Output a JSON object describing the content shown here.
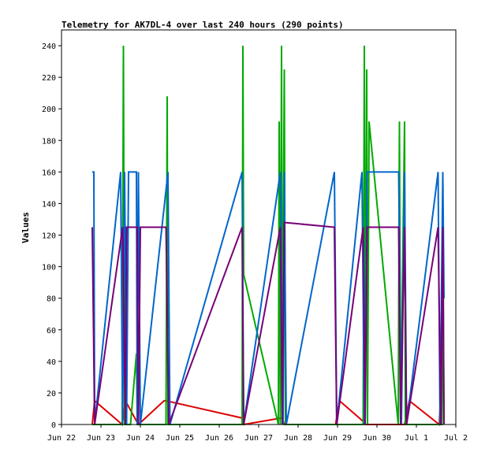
{
  "chart_data": {
    "type": "line",
    "title": "Telemetry for AK7DL-4 over last 240 hours (290 points)",
    "xlabel": "",
    "ylabel": "Values",
    "xlim": [
      0,
      10
    ],
    "ylim": [
      0,
      250
    ],
    "x_tick_labels": [
      "Jun 22",
      "Jun 23",
      "Jun 24",
      "Jun 25",
      "Jun 26",
      "Jun 27",
      "Jun 28",
      "Jun 29",
      "Jun 30",
      "Jul 1",
      "Jul 2"
    ],
    "x_tick_values": [
      0,
      1,
      2,
      3,
      4,
      5,
      6,
      7,
      8,
      9,
      10
    ],
    "y_tick_values": [
      0,
      20,
      40,
      60,
      80,
      100,
      120,
      140,
      160,
      180,
      200,
      220,
      240
    ],
    "grid": false,
    "legend": "none",
    "colors": {
      "series_red": "#dd0000",
      "series_green": "#00aa00",
      "series_blue": "#0066cc",
      "series_purple": "#770077",
      "frame": "#000000"
    },
    "series": [
      {
        "values": [
          [
            0.78,
            0
          ],
          [
            0.84,
            15
          ],
          [
            1.54,
            0
          ],
          [
            1.62,
            15
          ],
          [
            1.95,
            0
          ],
          [
            2.6,
            15
          ],
          [
            2.65,
            15
          ],
          [
            4.6,
            4
          ],
          [
            4.62,
            0
          ],
          [
            5.55,
            4
          ],
          [
            5.6,
            4
          ],
          [
            5.65,
            0
          ],
          [
            6.95,
            0
          ],
          [
            7.05,
            15
          ],
          [
            7.65,
            2
          ],
          [
            7.7,
            0
          ],
          [
            8.7,
            0
          ],
          [
            8.82,
            15
          ],
          [
            9.58,
            0
          ],
          [
            9.6,
            10
          ],
          [
            9.62,
            0
          ]
        ]
      },
      {
        "values": [
          [
            0.78,
            0
          ],
          [
            1.54,
            0
          ],
          [
            1.57,
            240
          ],
          [
            1.6,
            0
          ],
          [
            1.75,
            0
          ],
          [
            1.9,
            45
          ],
          [
            1.92,
            0
          ],
          [
            2.65,
            0
          ],
          [
            2.68,
            208
          ],
          [
            2.7,
            0
          ],
          [
            4.58,
            0
          ],
          [
            4.6,
            240
          ],
          [
            4.62,
            95
          ],
          [
            5.5,
            0
          ],
          [
            5.52,
            192
          ],
          [
            5.55,
            0
          ],
          [
            5.58,
            240
          ],
          [
            5.6,
            0
          ],
          [
            5.65,
            225
          ],
          [
            5.68,
            0
          ],
          [
            7.65,
            0
          ],
          [
            7.68,
            240
          ],
          [
            7.7,
            0
          ],
          [
            7.74,
            225
          ],
          [
            7.76,
            0
          ],
          [
            7.8,
            192
          ],
          [
            8.54,
            0
          ],
          [
            8.57,
            192
          ],
          [
            8.6,
            0
          ],
          [
            8.7,
            192
          ],
          [
            8.72,
            0
          ],
          [
            9.65,
            0
          ],
          [
            9.67,
            140
          ],
          [
            9.7,
            0
          ]
        ]
      },
      {
        "values": [
          [
            0.78,
            160
          ],
          [
            0.82,
            160
          ],
          [
            0.84,
            0
          ],
          [
            1.5,
            160
          ],
          [
            1.55,
            0
          ],
          [
            1.6,
            160
          ],
          [
            1.65,
            0
          ],
          [
            1.7,
            160
          ],
          [
            1.9,
            160
          ],
          [
            1.92,
            0
          ],
          [
            1.95,
            160
          ],
          [
            2.0,
            0
          ],
          [
            2.7,
            160
          ],
          [
            2.75,
            0
          ],
          [
            4.58,
            160
          ],
          [
            4.62,
            0
          ],
          [
            5.55,
            160
          ],
          [
            5.62,
            0
          ],
          [
            5.65,
            160
          ],
          [
            5.7,
            0
          ],
          [
            6.92,
            160
          ],
          [
            6.98,
            0
          ],
          [
            7.62,
            160
          ],
          [
            7.68,
            0
          ],
          [
            7.75,
            160
          ],
          [
            8.55,
            160
          ],
          [
            8.62,
            0
          ],
          [
            8.7,
            160
          ],
          [
            8.75,
            0
          ],
          [
            9.55,
            160
          ],
          [
            9.6,
            0
          ],
          [
            9.67,
            160
          ],
          [
            9.7,
            80
          ]
        ]
      },
      {
        "values": [
          [
            0.78,
            125
          ],
          [
            0.84,
            0
          ],
          [
            1.55,
            125
          ],
          [
            1.62,
            0
          ],
          [
            1.65,
            125
          ],
          [
            1.92,
            125
          ],
          [
            1.95,
            0
          ],
          [
            2.0,
            125
          ],
          [
            2.65,
            125
          ],
          [
            2.72,
            0
          ],
          [
            4.58,
            125
          ],
          [
            4.62,
            0
          ],
          [
            5.55,
            125
          ],
          [
            5.6,
            0
          ],
          [
            5.65,
            128
          ],
          [
            6.92,
            125
          ],
          [
            6.98,
            0
          ],
          [
            7.65,
            125
          ],
          [
            7.7,
            0
          ],
          [
            7.75,
            125
          ],
          [
            8.55,
            125
          ],
          [
            8.6,
            0
          ],
          [
            8.7,
            125
          ],
          [
            8.75,
            0
          ],
          [
            9.55,
            125
          ],
          [
            9.62,
            0
          ],
          [
            9.67,
            125
          ],
          [
            9.7,
            0
          ]
        ]
      }
    ]
  }
}
